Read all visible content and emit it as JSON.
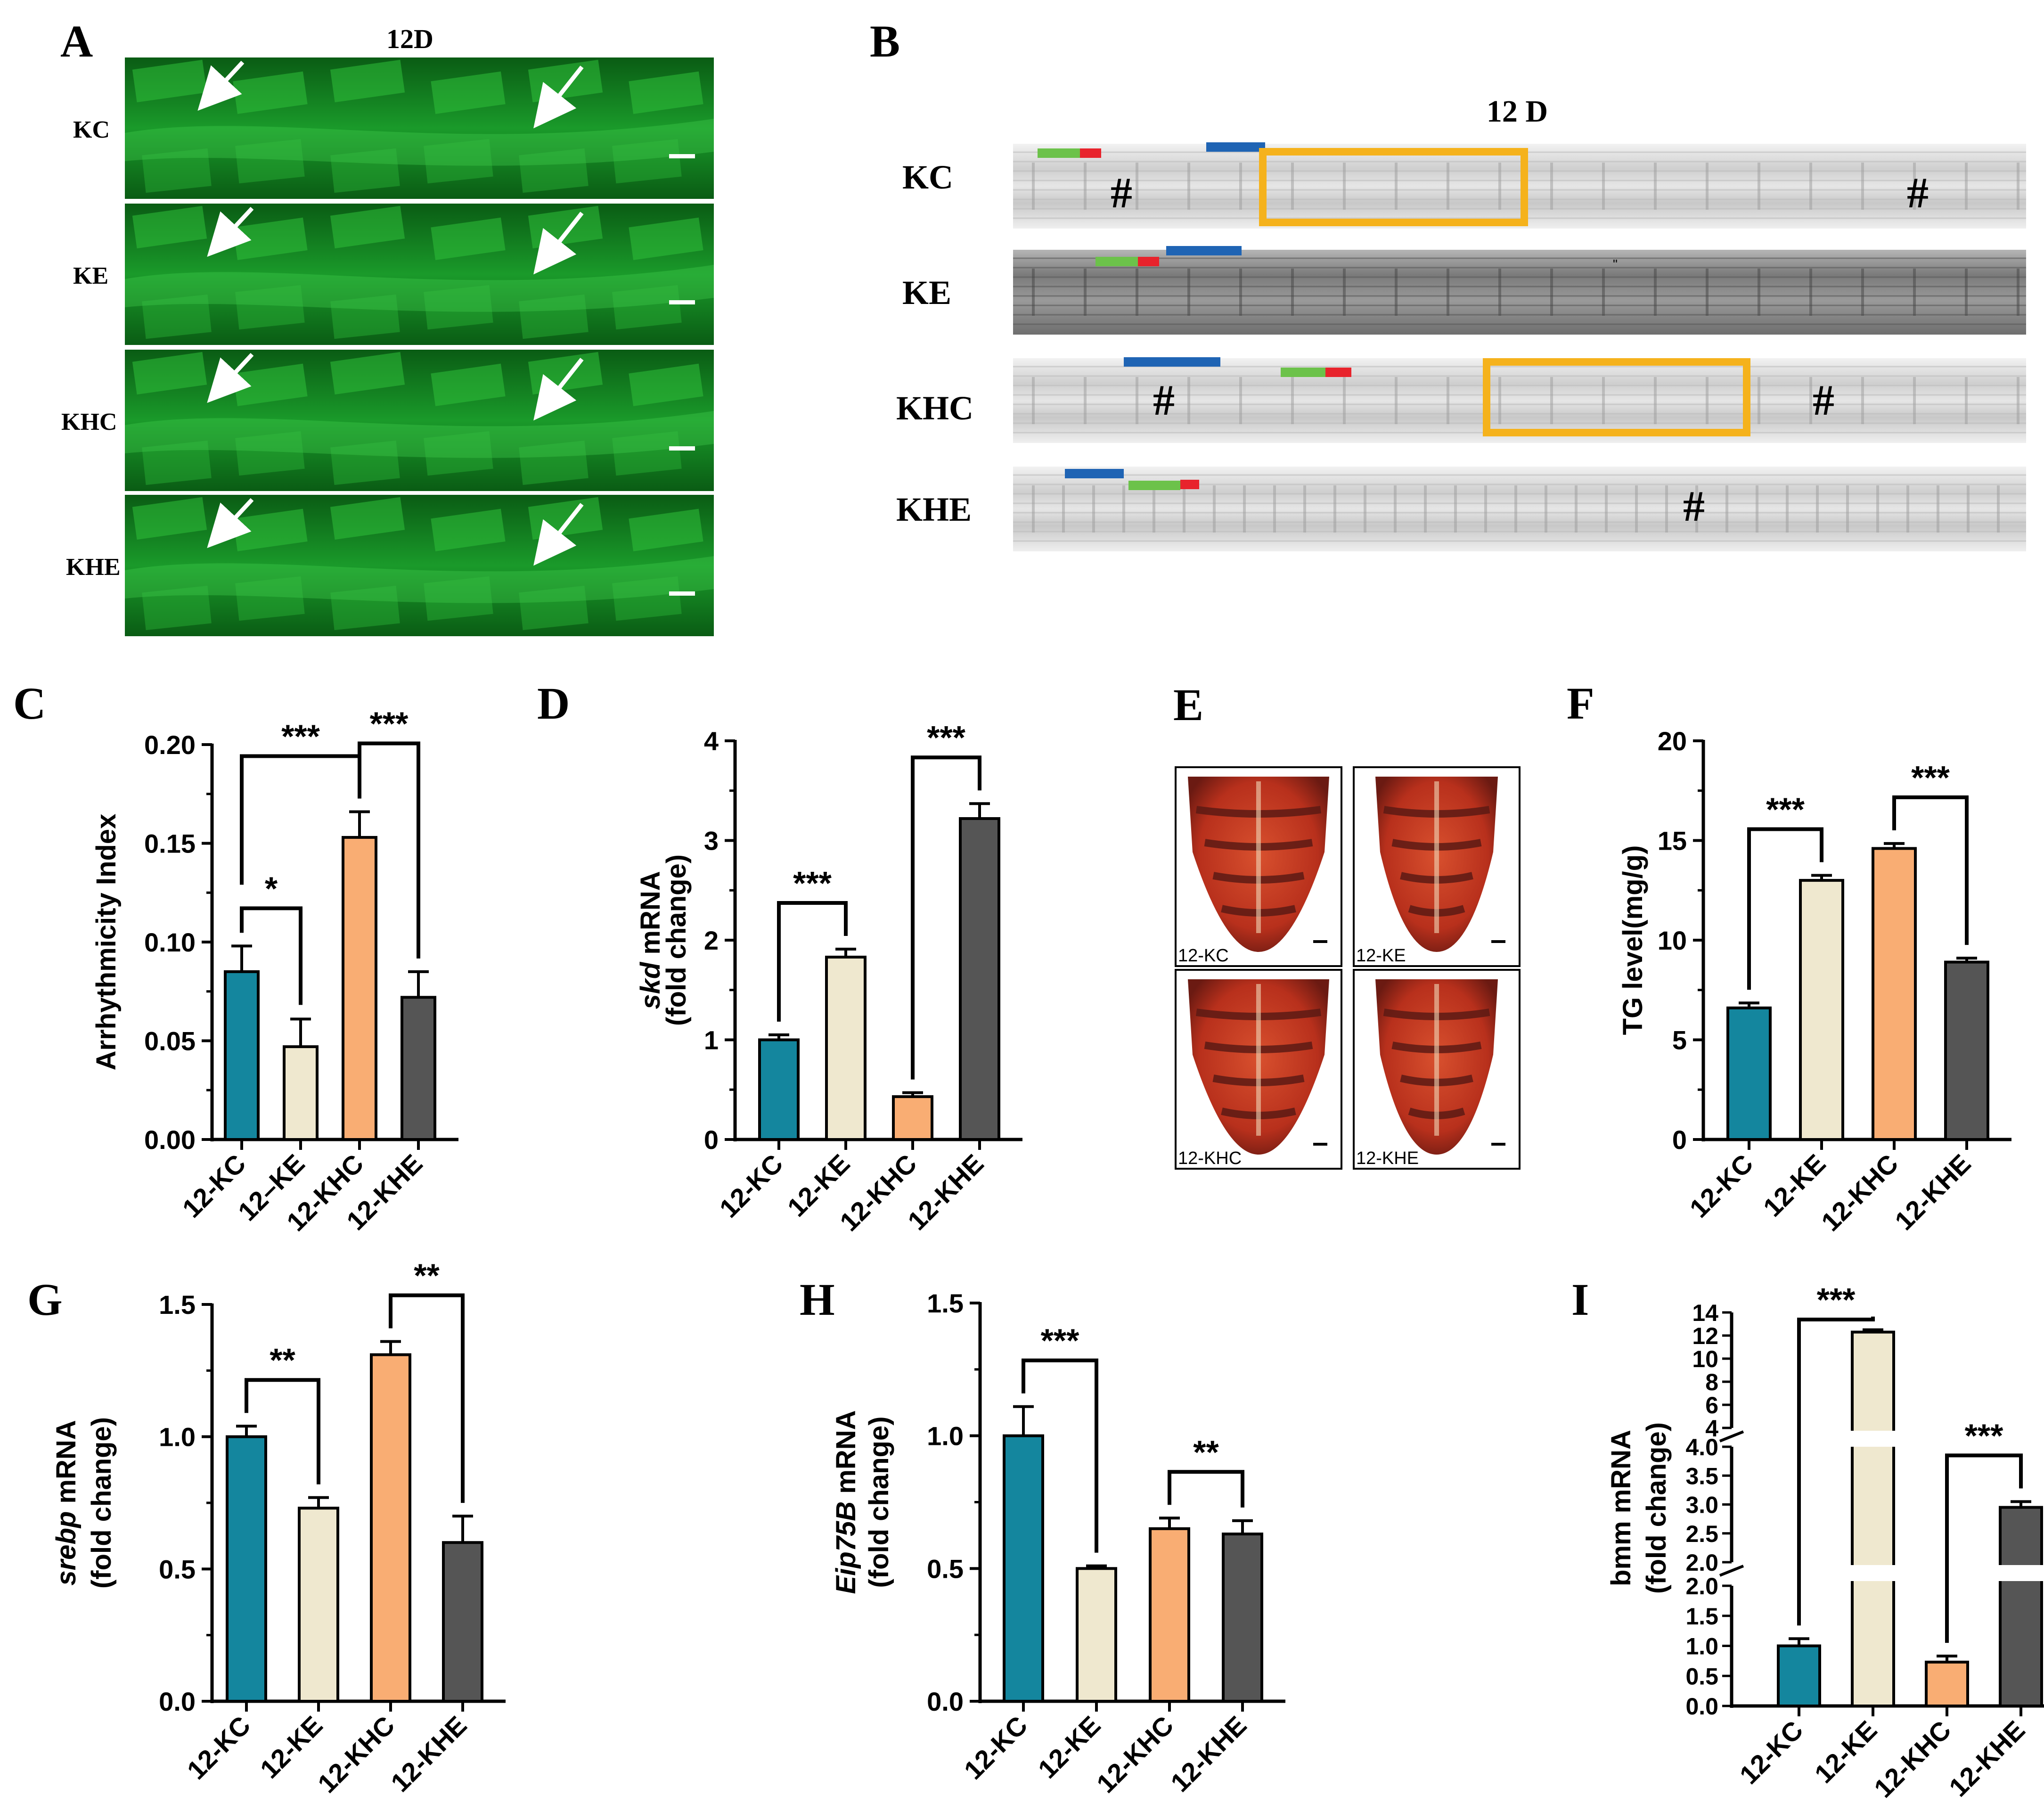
{
  "colors": {
    "kc": "#14869e",
    "ke": "#efe8cf",
    "khc": "#f9ad73",
    "khe": "#555555",
    "micro_bg": "#0f7a1e",
    "axis": "#000000",
    "box": "#f5b21c",
    "bar_green": "#6cc24a",
    "bar_red": "#e8232c",
    "bar_blue": "#1f64b4",
    "abd_dark": "#5c1a14",
    "abd_red": "#c03a22"
  },
  "panel_a": {
    "letter": "A",
    "title": "12D",
    "rows": [
      "KC",
      "KE",
      "KHC",
      "KHE"
    ]
  },
  "panel_b": {
    "letter": "B",
    "title": "12 D",
    "rows": [
      "KC",
      "KE",
      "KHC",
      "KHE"
    ],
    "hash": "#",
    "tick": "\""
  },
  "panel_e": {
    "letter": "E",
    "images": [
      "12-KC",
      "12-KE",
      "12-KHC",
      "12-KHE"
    ]
  },
  "chart_data": [
    {
      "id": "C",
      "letter": "C",
      "type": "bar",
      "categories": [
        "12-KC",
        "12–KE",
        "12-KHC",
        "12-KHE"
      ],
      "values": [
        0.085,
        0.047,
        0.153,
        0.072
      ],
      "errors": [
        0.013,
        0.014,
        0.013,
        0.013
      ],
      "ylabel": "Arrhythmicity Index",
      "ylim": [
        0,
        0.2
      ],
      "yticks": [
        "0.00",
        "0.05",
        "0.10",
        "0.15",
        "0.20"
      ],
      "sig": [
        {
          "from": 0,
          "to": 1,
          "label": "*"
        },
        {
          "from": 0,
          "to": 2,
          "label": "***"
        },
        {
          "from": 2,
          "to": 3,
          "label": "***"
        }
      ]
    },
    {
      "id": "D",
      "letter": "D",
      "type": "bar",
      "categories": [
        "12-KC",
        "12-KE",
        "12-KHC",
        "12-KHE"
      ],
      "values": [
        1.0,
        1.83,
        0.43,
        3.22
      ],
      "errors": [
        0.05,
        0.08,
        0.04,
        0.15
      ],
      "ylabel_italic": "skd",
      "ylabel_rest": " mRNA",
      "ylabel2": "(fold change)",
      "ylim": [
        0,
        4
      ],
      "yticks": [
        "0",
        "1",
        "2",
        "3",
        "4"
      ],
      "sig": [
        {
          "from": 0,
          "to": 1,
          "label": "***"
        },
        {
          "from": 2,
          "to": 3,
          "label": "***"
        }
      ]
    },
    {
      "id": "F",
      "letter": "F",
      "type": "bar",
      "categories": [
        "12-KC",
        "12-KE",
        "12-KHC",
        "12-KHE"
      ],
      "values": [
        6.6,
        13.0,
        14.6,
        8.9
      ],
      "errors": [
        0.25,
        0.25,
        0.25,
        0.2
      ],
      "ylabel": "TG level(mg/g)",
      "ylim": [
        0,
        20
      ],
      "yticks": [
        "0",
        "5",
        "10",
        "15",
        "20"
      ],
      "sig": [
        {
          "from": 0,
          "to": 1,
          "label": "***"
        },
        {
          "from": 2,
          "to": 3,
          "label": "***"
        }
      ]
    },
    {
      "id": "G",
      "letter": "G",
      "type": "bar",
      "categories": [
        "12-KC",
        "12-KE",
        "12-KHC",
        "12-KHE"
      ],
      "values": [
        1.0,
        0.73,
        1.31,
        0.6
      ],
      "errors": [
        0.04,
        0.04,
        0.05,
        0.1
      ],
      "ylabel_italic": "srebp",
      "ylabel_rest": " mRNA",
      "ylabel2": "(fold change)",
      "ylim": [
        0,
        1.5
      ],
      "yticks": [
        "0.0",
        "0.5",
        "1.0",
        "1.5"
      ],
      "sig": [
        {
          "from": 0,
          "to": 1,
          "label": "**"
        },
        {
          "from": 2,
          "to": 3,
          "label": "**"
        }
      ]
    },
    {
      "id": "H",
      "letter": "H",
      "type": "bar",
      "categories": [
        "12-KC",
        "12-KE",
        "12-KHC",
        "12-KHE"
      ],
      "values": [
        1.0,
        0.5,
        0.65,
        0.63
      ],
      "errors": [
        0.11,
        0.01,
        0.04,
        0.05
      ],
      "ylabel_italic": "Eip75B",
      "ylabel_rest": " mRNA",
      "ylabel2": "(fold change)",
      "ylim": [
        0,
        1.5
      ],
      "yticks": [
        "0.0",
        "0.5",
        "1.0",
        "1.5"
      ],
      "sig": [
        {
          "from": 0,
          "to": 1,
          "label": "***"
        },
        {
          "from": 2,
          "to": 3,
          "label": "**"
        }
      ]
    },
    {
      "id": "I",
      "letter": "I",
      "type": "bar",
      "categories": [
        "12-KC",
        "12-KE",
        "12-KHC",
        "12-KHE"
      ],
      "values": [
        1.0,
        12.3,
        0.73,
        2.95
      ],
      "errors": [
        0.12,
        0.2,
        0.1,
        0.1
      ],
      "ylabel": "bmm mRNA",
      "ylabel2": "(fold change)",
      "broken_axis": true,
      "yticks_low": [
        "0.0",
        "0.5",
        "1.0",
        "1.5",
        "2.0"
      ],
      "yticks_mid": [
        "2.0",
        "2.5",
        "3.0",
        "3.5",
        "4.0"
      ],
      "yticks_high": [
        "4",
        "6",
        "8",
        "10",
        "12",
        "14"
      ],
      "sig": [
        {
          "from": 0,
          "to": 1,
          "label": "***"
        },
        {
          "from": 2,
          "to": 3,
          "label": "***"
        }
      ]
    }
  ]
}
